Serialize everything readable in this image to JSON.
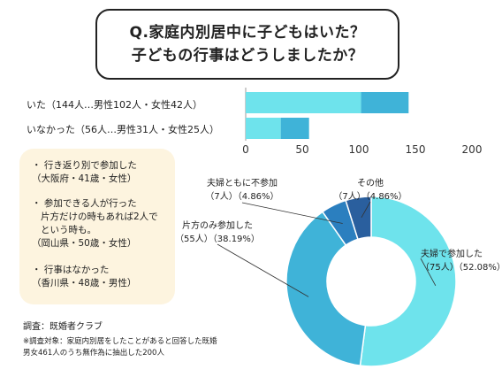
{
  "title": {
    "line1": "Q.家庭内別居中に子どもはいた？",
    "line2": "子どもの行事はどうしましたか？"
  },
  "quotes": [
    {
      "line1": "・ 行き返り別で参加した",
      "line2": "（大阪府・41歳・女性）"
    },
    {
      "line1": "・ 参加できる人が行った",
      "line2": "片方だけの時もあれば2人で",
      "line3": "という時も。",
      "line4": "（岡山県・50歳・女性）"
    },
    {
      "line1": "・ 行事はなかった",
      "line2": "（香川県・48歳・男性）"
    }
  ],
  "source": {
    "survey": "調査：既婚者クラブ",
    "note1": "※調査対象：家庭内別居をしたことがあると回答した既婚",
    "note2": "男女461人のうち無作為に抽出した200人"
  },
  "chart_data": [
    {
      "type": "bar",
      "orientation": "horizontal",
      "stacked": true,
      "categories": [
        "いた（144人…男性102人・女性42人）",
        "いなかった（56人…男性31人・女性25人）"
      ],
      "series": [
        {
          "values": [
            102,
            31
          ]
        },
        {
          "values": [
            42,
            25
          ]
        }
      ],
      "xlim": [
        0,
        200
      ],
      "xticks": [
        "0",
        "50",
        "100",
        "150",
        "200"
      ],
      "colors": [
        "#6ee3ec",
        "#3fb3d8"
      ]
    },
    {
      "type": "pie",
      "donut": true,
      "slices": [
        {
          "label": "夫婦で参加した",
          "detail": "（75人）（52.08%）",
          "value": 75,
          "percent": 52.08,
          "color": "#6ee3ec"
        },
        {
          "label": "片方のみ参加した",
          "detail": "（55人）（38.19%）",
          "value": 55,
          "percent": 38.19,
          "color": "#3fb3d8"
        },
        {
          "label": "夫婦ともに不参加",
          "detail": "（7人）（4.86%）",
          "value": 7,
          "percent": 4.86,
          "color": "#2b7fbf"
        },
        {
          "label": "その他",
          "detail": "（7人）（4.86%）",
          "value": 7,
          "percent": 4.86,
          "color": "#2a5f9e"
        }
      ]
    }
  ]
}
